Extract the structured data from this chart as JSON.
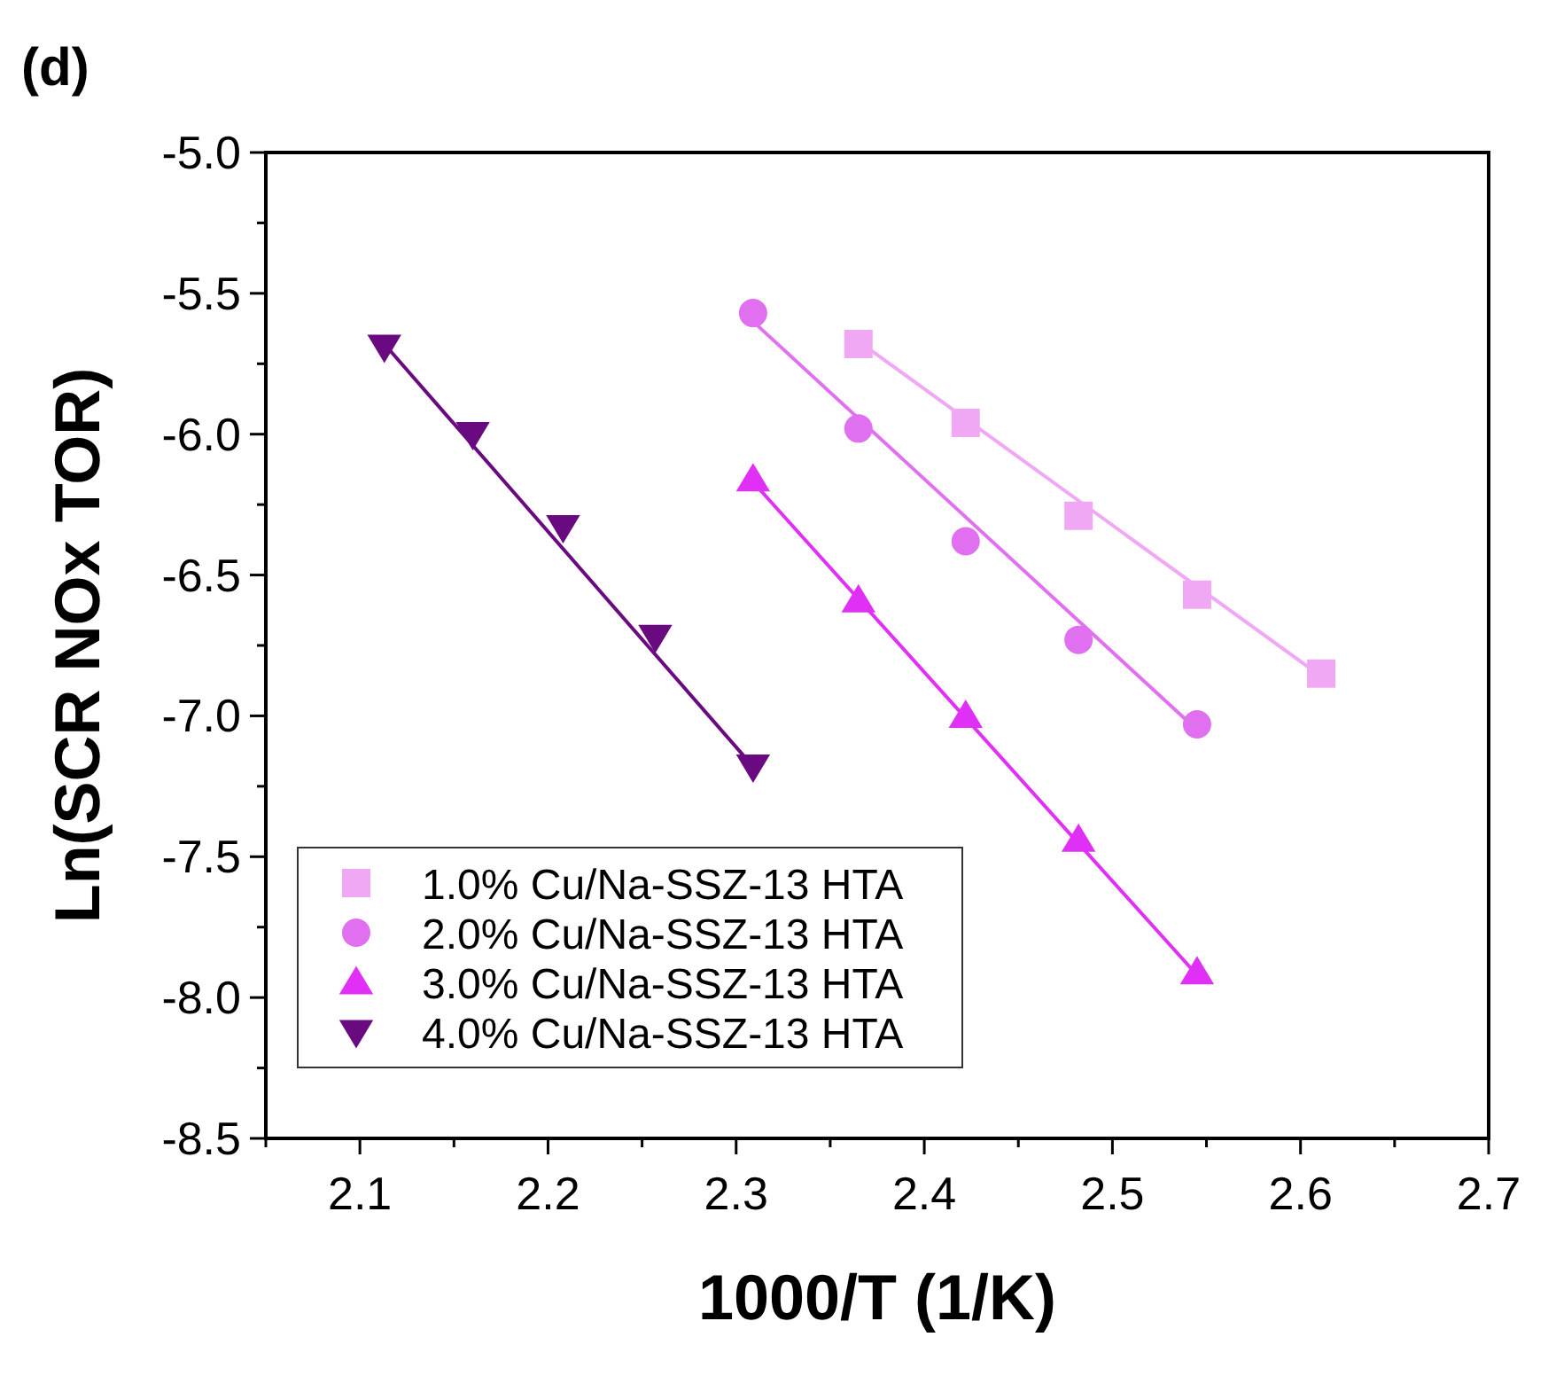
{
  "chart_data": {
    "type": "scatter",
    "title": "(d)",
    "xlabel": "1000/T (1/K)",
    "ylabel": "Ln(SCR NOx TOR)",
    "xlim": [
      2.05,
      2.7
    ],
    "xticks": [
      {
        "value": 2.05,
        "label": null
      },
      2.1,
      {
        "value": 2.15,
        "label": null
      },
      2.2,
      {
        "value": 2.25,
        "label": null
      },
      2.3,
      {
        "value": 2.35,
        "label": null
      },
      2.4,
      {
        "value": 2.45,
        "label": null
      },
      2.5,
      {
        "value": 2.55,
        "label": null
      },
      2.6,
      {
        "value": 2.65,
        "label": null
      },
      2.7
    ],
    "ylim": [
      -8.5,
      -5.0
    ],
    "yticks": [
      -8.5,
      {
        "value": -8.25,
        "label": null
      },
      {
        "value": -8,
        "label": "-8.0"
      },
      {
        "value": -7.75,
        "label": null
      },
      -7.5,
      {
        "value": -7.25,
        "label": null
      },
      {
        "value": -7,
        "label": "-7.0"
      },
      {
        "value": -6.75,
        "label": null
      },
      -6.5,
      {
        "value": -6.25,
        "label": null
      },
      {
        "value": -6,
        "label": "-6.0"
      },
      {
        "value": -5.75,
        "label": null
      },
      -5.5,
      {
        "value": -5.25,
        "label": null
      },
      {
        "value": -5,
        "label": "-5.0"
      }
    ],
    "grid": false,
    "legend": "bottom left",
    "series": [
      {
        "name": "1.0% Cu/Na-SSZ-13 HTA",
        "color": "#f0a8f5",
        "marker": "square",
        "x": [
          2.365,
          2.422,
          2.482,
          2.545,
          2.611
        ],
        "values": [
          -5.68,
          -5.96,
          -6.29,
          -6.57,
          -6.85
        ]
      },
      {
        "name": "2.0% Cu/Na-SSZ-13 HTA",
        "color": "#e070f0",
        "marker": "circle",
        "x": [
          2.309,
          2.365,
          2.422,
          2.482,
          2.545
        ],
        "values": [
          -5.57,
          -5.98,
          -6.38,
          -6.73,
          -7.03
        ]
      },
      {
        "name": "3.0% Cu/Na-SSZ-13 HTA",
        "color": "#e030f5",
        "marker": "triangle",
        "x": [
          2.309,
          2.365,
          2.422,
          2.482,
          2.545
        ],
        "values": [
          -6.16,
          -6.59,
          -7.0,
          -7.44,
          -7.91
        ]
      },
      {
        "name": "4.0% Cu/Na-SSZ-13 HTA",
        "color": "#6a0a80",
        "marker": "triangle-down",
        "x": [
          2.113,
          2.16,
          2.208,
          2.257,
          2.309
        ],
        "values": [
          -5.69,
          -6.0,
          -6.33,
          -6.72,
          -7.18
        ]
      },
      {
        "type": "line",
        "color": "#f0a8f5",
        "x": [
          2.365,
          2.611
        ],
        "values": [
          -5.67,
          -6.86
        ]
      },
      {
        "type": "line",
        "color": "#e070f0",
        "x": [
          2.309,
          2.545
        ],
        "values": [
          -5.6,
          -7.05
        ]
      },
      {
        "type": "line",
        "color": "#e030f5",
        "x": [
          2.309,
          2.545
        ],
        "values": [
          -6.17,
          -7.92
        ]
      },
      {
        "type": "line",
        "color": "#6a0a80",
        "x": [
          2.113,
          2.309
        ],
        "values": [
          -5.68,
          -7.18
        ]
      }
    ]
  }
}
